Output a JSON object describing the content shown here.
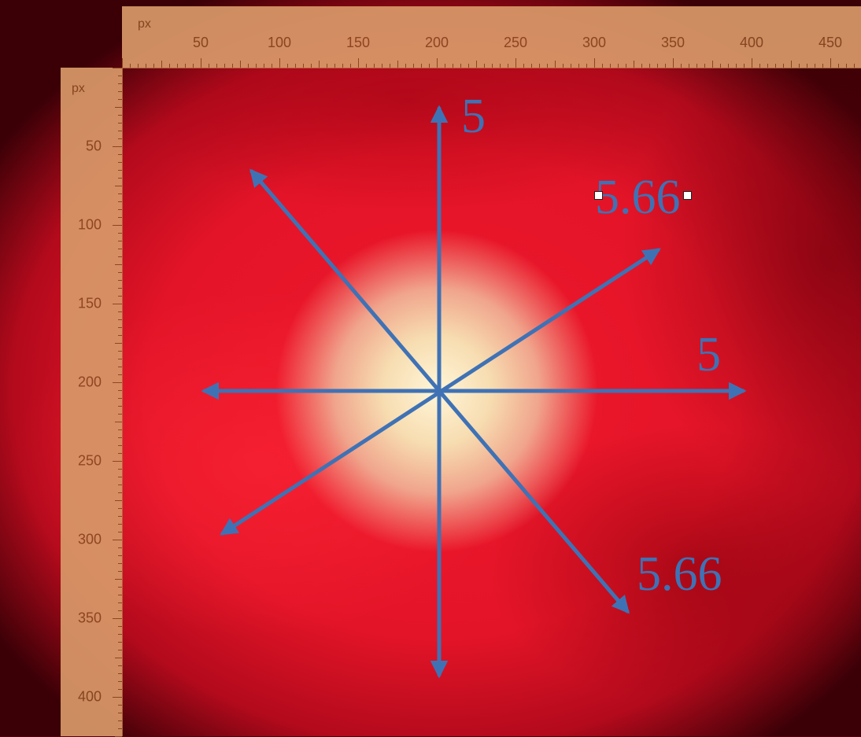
{
  "rulers": {
    "unit": "px",
    "top_ticks": [
      "50",
      "100",
      "150",
      "200",
      "250",
      "300",
      "350",
      "400",
      "450"
    ],
    "left_ticks": [
      "50",
      "100",
      "150",
      "200",
      "250",
      "300",
      "350",
      "400"
    ]
  },
  "vectors": {
    "color": "#3f72b5",
    "labels": {
      "up": "5",
      "right": "5",
      "upper_right": "5.66",
      "lower_right": "5.66"
    }
  },
  "colors": {
    "ruler_bg": "#d89868",
    "ruler_text": "#8a4a22",
    "background": "#e41428",
    "center_glow": "#fff6d8"
  }
}
